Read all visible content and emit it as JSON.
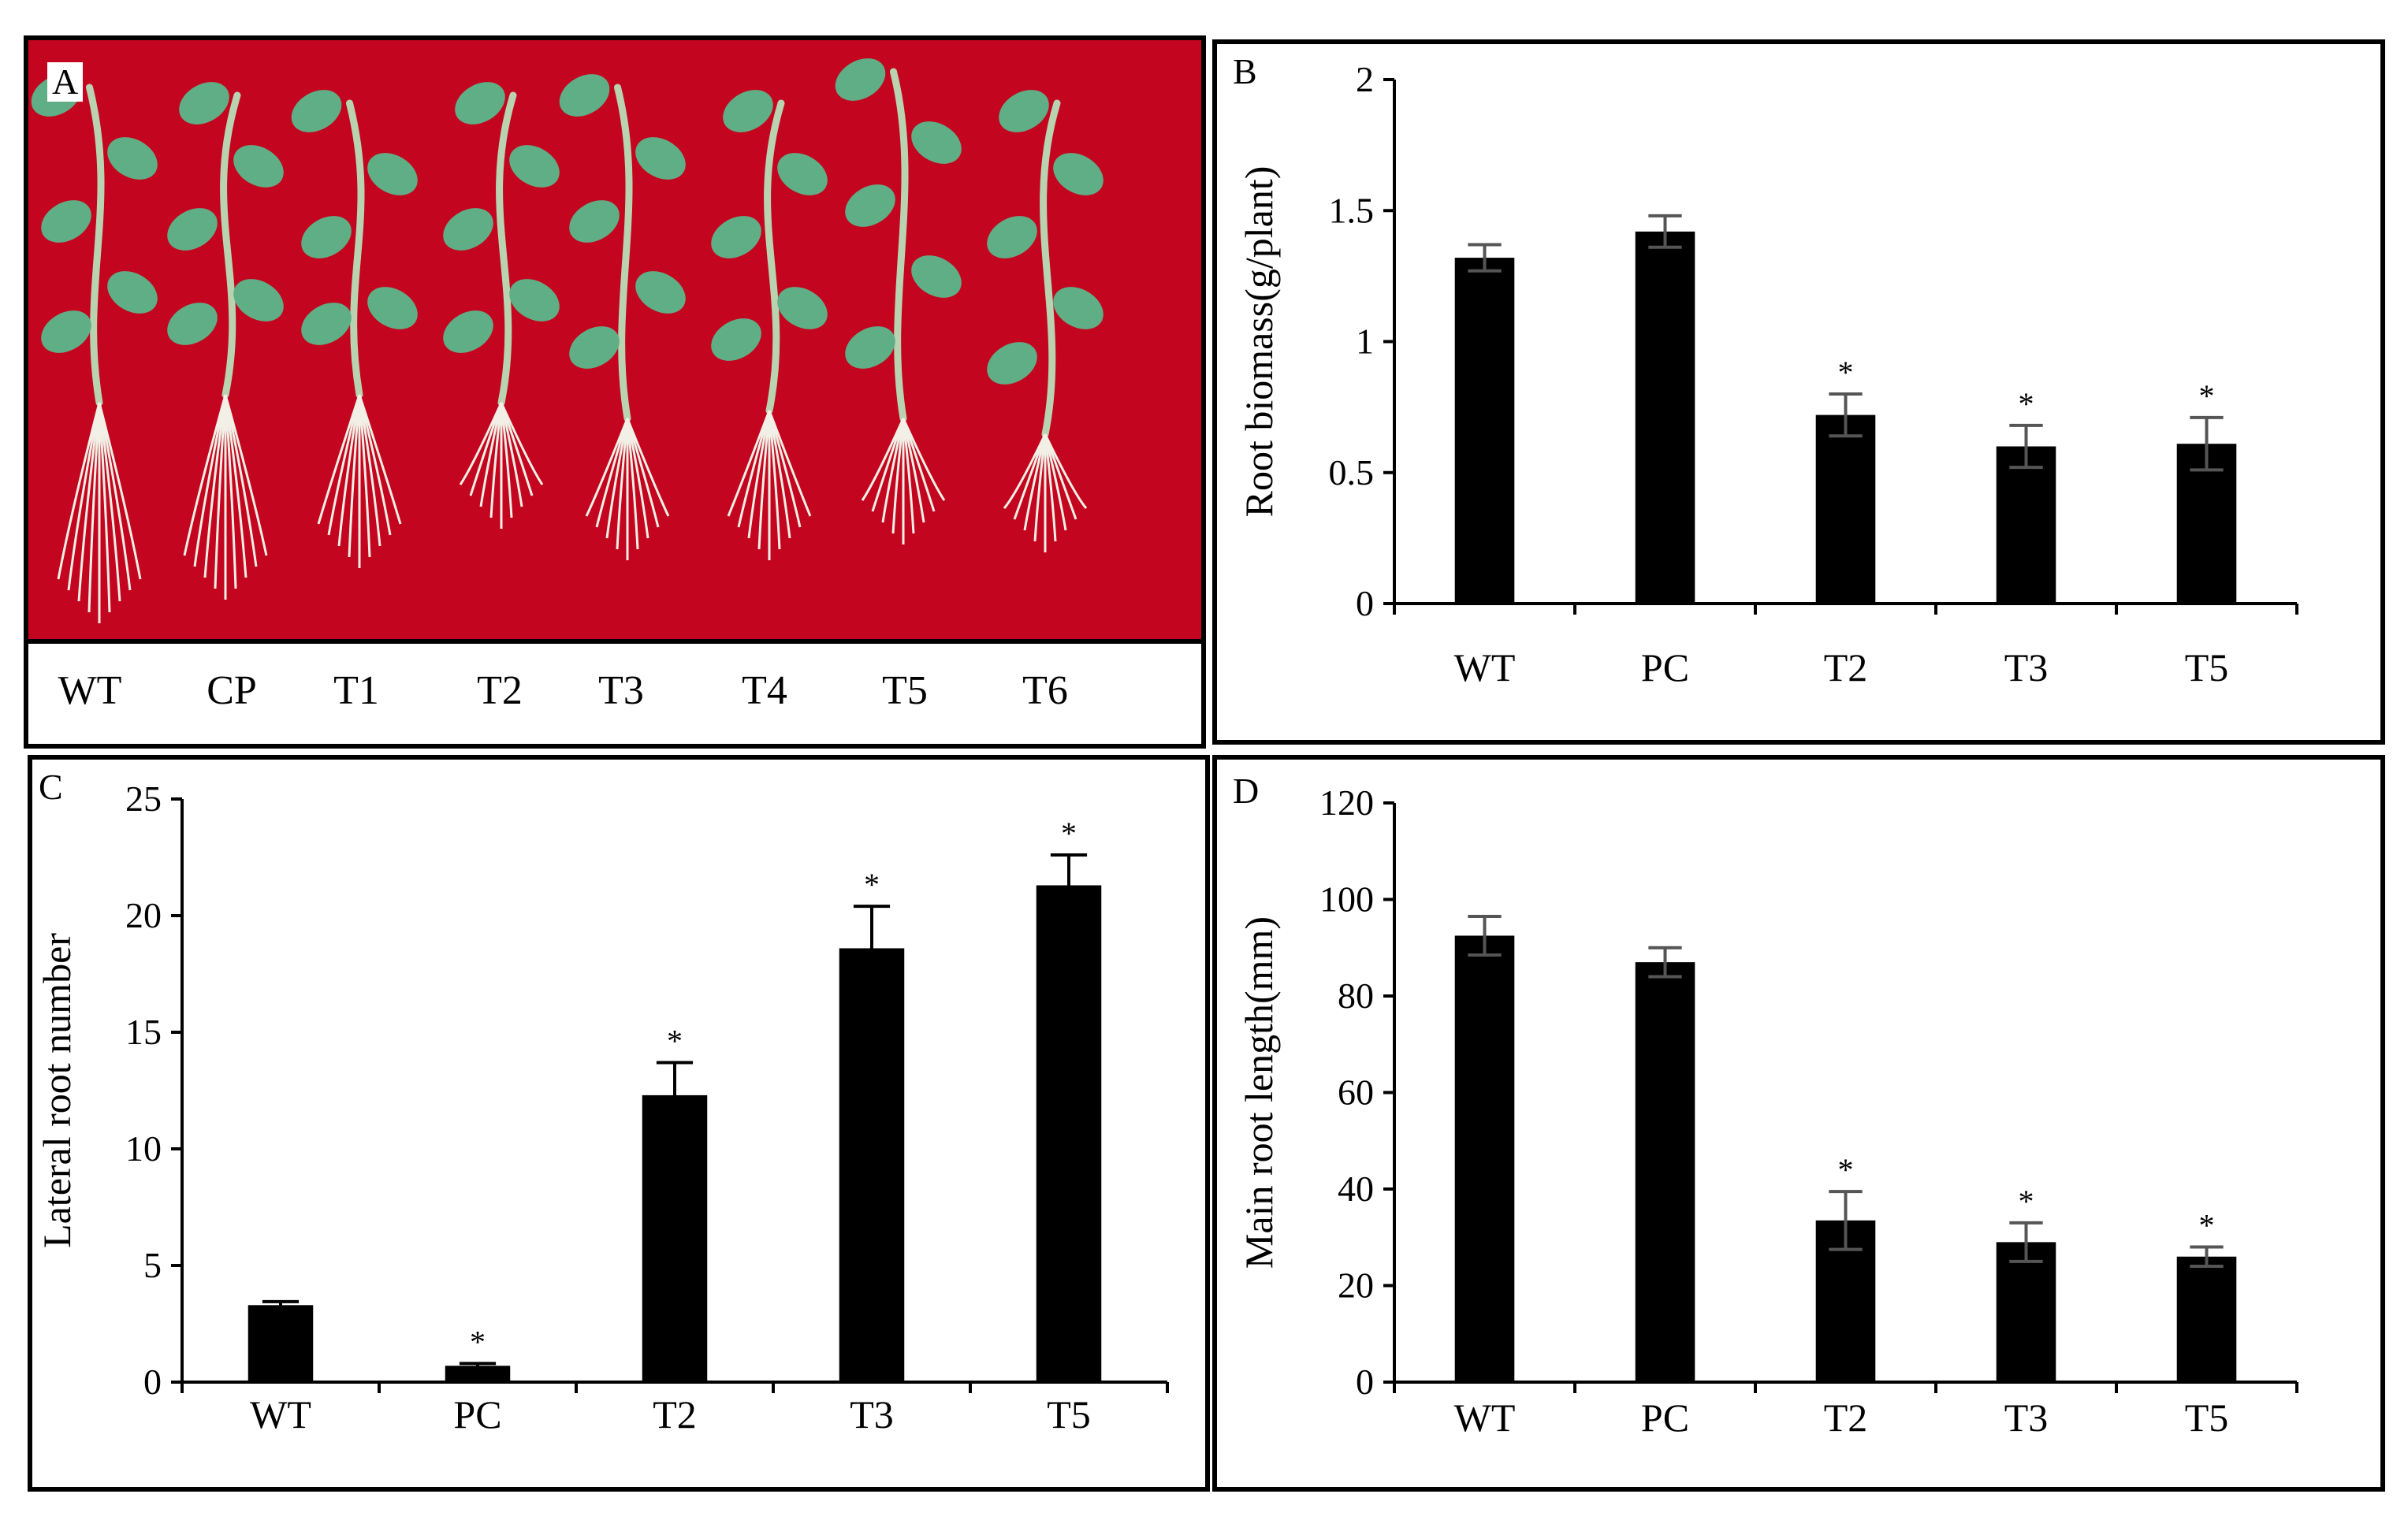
{
  "panelA": {
    "letter": "A",
    "labels": [
      "WT",
      "CP",
      "T1",
      "T2",
      "T3",
      "T4",
      "T5",
      "T6"
    ],
    "colors": {
      "background": "#c4051f",
      "stem": "#b9d3b0",
      "leaf": "#5fae86",
      "root": "#f2f0e6"
    }
  },
  "chart_data": [
    {
      "id": "B",
      "letter": "B",
      "type": "bar",
      "categories": [
        "WT",
        "PC",
        "T2",
        "T3",
        "T5"
      ],
      "values": [
        1.32,
        1.42,
        0.72,
        0.6,
        0.61
      ],
      "errors": [
        0.05,
        0.06,
        0.08,
        0.08,
        0.1
      ],
      "significant": [
        false,
        false,
        true,
        true,
        true
      ],
      "ylabel": "Root biomass(g/plant)",
      "ylim": [
        0,
        2
      ],
      "yticks": [
        0,
        0.5,
        1,
        1.5,
        2
      ],
      "ytick_labels": [
        "0",
        "0.5",
        "1",
        "1.5",
        "2"
      ],
      "xlabel": "",
      "grid": false,
      "legend": "none",
      "colors": {
        "bar": "#000000",
        "error": "#555555"
      }
    },
    {
      "id": "C",
      "letter": "C",
      "type": "bar",
      "categories": [
        "WT",
        "PC",
        "T2",
        "T3",
        "T5"
      ],
      "values": [
        3.3,
        0.7,
        12.3,
        18.6,
        21.3
      ],
      "errors": [
        0.15,
        0.1,
        1.4,
        1.8,
        1.3
      ],
      "significant": [
        false,
        true,
        true,
        true,
        true
      ],
      "ylabel": "Lateral root number",
      "ylim": [
        0,
        25
      ],
      "yticks": [
        0,
        5,
        10,
        15,
        20,
        25
      ],
      "ytick_labels": [
        "0",
        "5",
        "10",
        "15",
        "20",
        "25"
      ],
      "xlabel": "",
      "grid": false,
      "legend": "none",
      "colors": {
        "bar": "#000000",
        "error": "#000000"
      }
    },
    {
      "id": "D",
      "letter": "D",
      "type": "bar",
      "categories": [
        "WT",
        "PC",
        "T2",
        "T3",
        "T5"
      ],
      "values": [
        92.5,
        87,
        33.5,
        29,
        26
      ],
      "errors": [
        4,
        3,
        6,
        4,
        2
      ],
      "significant": [
        false,
        false,
        true,
        true,
        true
      ],
      "ylabel": "Main root length(mm)",
      "ylim": [
        0,
        120
      ],
      "yticks": [
        0,
        20,
        40,
        60,
        80,
        100,
        120
      ],
      "ytick_labels": [
        "0",
        "20",
        "40",
        "60",
        "80",
        "100",
        "120"
      ],
      "xlabel": "",
      "grid": false,
      "legend": "none",
      "colors": {
        "bar": "#000000",
        "error": "#555555"
      }
    }
  ]
}
